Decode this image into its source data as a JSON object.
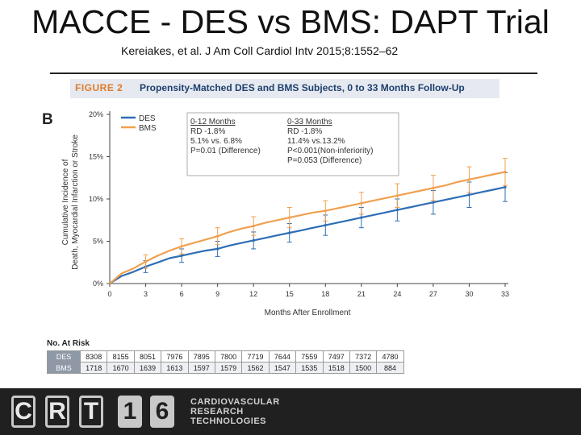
{
  "slide": {
    "title": "MACCE - DES vs BMS: DAPT Trial",
    "citation": "Kereiakes, et al. J Am Coll Cardiol Intv 2015;8:1552–62"
  },
  "figure": {
    "label": "FIGURE 2",
    "title": "Propensity-Matched DES and BMS Subjects, 0 to 33 Months Follow-Up",
    "panel": "B"
  },
  "chart_data": {
    "type": "line",
    "x": [
      0,
      1,
      2,
      3,
      4,
      5,
      6,
      7,
      8,
      9,
      10,
      11,
      12,
      13,
      14,
      15,
      16,
      17,
      18,
      19,
      20,
      21,
      22,
      23,
      24,
      25,
      26,
      27,
      28,
      29,
      30,
      31,
      32,
      33
    ],
    "series": [
      {
        "name": "DES",
        "color": "#2e6db4",
        "values": [
          0,
          0.9,
          1.4,
          2.0,
          2.5,
          3.0,
          3.3,
          3.6,
          3.9,
          4.1,
          4.5,
          4.8,
          5.1,
          5.4,
          5.7,
          6.0,
          6.3,
          6.6,
          6.9,
          7.2,
          7.5,
          7.8,
          8.1,
          8.4,
          8.7,
          9.0,
          9.3,
          9.6,
          9.9,
          10.2,
          10.5,
          10.8,
          11.1,
          11.4
        ],
        "error_bars": [
          {
            "x": 3,
            "y": 2.0,
            "low": 1.3,
            "high": 2.7
          },
          {
            "x": 6,
            "y": 3.3,
            "low": 2.5,
            "high": 4.1
          },
          {
            "x": 9,
            "y": 4.1,
            "low": 3.2,
            "high": 5.0
          },
          {
            "x": 12,
            "y": 5.1,
            "low": 4.1,
            "high": 6.1
          },
          {
            "x": 15,
            "y": 6.0,
            "low": 4.9,
            "high": 7.1
          },
          {
            "x": 18,
            "y": 6.9,
            "low": 5.7,
            "high": 8.1
          },
          {
            "x": 21,
            "y": 7.8,
            "low": 6.6,
            "high": 9.0
          },
          {
            "x": 24,
            "y": 8.7,
            "low": 7.4,
            "high": 10.0
          },
          {
            "x": 27,
            "y": 9.6,
            "low": 8.2,
            "high": 11.0
          },
          {
            "x": 30,
            "y": 10.5,
            "low": 9.0,
            "high": 12.0
          },
          {
            "x": 33,
            "y": 11.4,
            "low": 9.7,
            "high": 13.1
          }
        ]
      },
      {
        "name": "BMS",
        "color": "#f0a050",
        "values": [
          0,
          1.2,
          1.8,
          2.6,
          3.3,
          3.9,
          4.4,
          4.8,
          5.2,
          5.6,
          6.1,
          6.5,
          6.8,
          7.2,
          7.5,
          7.8,
          8.1,
          8.4,
          8.6,
          8.9,
          9.2,
          9.5,
          9.8,
          10.1,
          10.4,
          10.7,
          11.0,
          11.3,
          11.6,
          12.0,
          12.3,
          12.6,
          12.9,
          13.2
        ],
        "error_bars": [
          {
            "x": 3,
            "y": 2.6,
            "low": 1.8,
            "high": 3.4
          },
          {
            "x": 6,
            "y": 4.4,
            "low": 3.5,
            "high": 5.3
          },
          {
            "x": 9,
            "y": 5.6,
            "low": 4.6,
            "high": 6.6
          },
          {
            "x": 12,
            "y": 6.8,
            "low": 5.7,
            "high": 7.9
          },
          {
            "x": 15,
            "y": 7.8,
            "low": 6.6,
            "high": 9.0
          },
          {
            "x": 18,
            "y": 8.6,
            "low": 7.4,
            "high": 9.8
          },
          {
            "x": 21,
            "y": 9.5,
            "low": 8.2,
            "high": 10.8
          },
          {
            "x": 24,
            "y": 10.4,
            "low": 9.0,
            "high": 11.8
          },
          {
            "x": 27,
            "y": 11.3,
            "low": 9.8,
            "high": 12.8
          },
          {
            "x": 30,
            "y": 12.3,
            "low": 10.8,
            "high": 13.8
          },
          {
            "x": 33,
            "y": 13.2,
            "low": 11.6,
            "high": 14.8
          }
        ]
      }
    ],
    "xlabel": "Months After Enrollment",
    "ylabel": [
      "Cumulative Incidence of",
      "Death, Myocardial Infarction or Stroke"
    ],
    "xticks": [
      "0",
      "3",
      "6",
      "9",
      "12",
      "15",
      "18",
      "21",
      "24",
      "27",
      "30",
      "33"
    ],
    "yticks": [
      "0%",
      "5%",
      "10%",
      "15%",
      "20%"
    ],
    "xlim": [
      0,
      33
    ],
    "ylim": [
      0,
      20
    ],
    "grid": false,
    "legend": {
      "placement": "top-left",
      "items": [
        "DES",
        "BMS"
      ]
    },
    "annotations": {
      "col1": {
        "heading": "0-12 Months",
        "lines": [
          "RD -1.8%",
          "5.1% vs. 6.8%",
          "P=0.01 (Difference)"
        ]
      },
      "col2": {
        "heading": "0-33 Months",
        "lines": [
          "RD  -1.8%",
          "11.4% vs.13.2%",
          "P<0.001(Non-inferiority)",
          "P=0.053 (Difference)"
        ]
      }
    },
    "risk_table": {
      "title": "No. At Risk",
      "rows": [
        {
          "label": "DES",
          "values": [
            "8308",
            "8155",
            "8051",
            "7976",
            "7895",
            "7800",
            "7719",
            "7644",
            "7559",
            "7497",
            "7372",
            "4780"
          ]
        },
        {
          "label": "BMS",
          "values": [
            "1718",
            "1670",
            "1639",
            "1613",
            "1597",
            "1579",
            "1562",
            "1547",
            "1535",
            "1518",
            "1500",
            "884"
          ]
        }
      ]
    }
  },
  "footer": {
    "logo_letters": [
      "C",
      "R",
      "T",
      "1",
      "6"
    ],
    "org_lines": [
      "CARDIOVASCULAR",
      "RESEARCH",
      "TECHNOLOGIES"
    ]
  }
}
